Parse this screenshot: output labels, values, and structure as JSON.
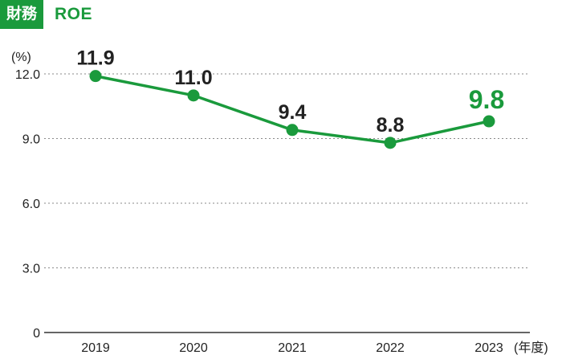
{
  "header": {
    "badge": "財務",
    "title": "ROE"
  },
  "chart_data": {
    "type": "line",
    "ylabel": "(%)",
    "xlabel": "(年度)",
    "categories": [
      "2019",
      "2020",
      "2021",
      "2022",
      "2023"
    ],
    "series": [
      {
        "values": [
          11.9,
          11.0,
          9.4,
          8.8,
          9.8
        ]
      }
    ],
    "data_labels": [
      "11.9",
      "11.0",
      "9.4",
      "8.8",
      "9.8"
    ],
    "ylim": [
      0,
      12
    ],
    "yticks": [
      {
        "value": 12,
        "label": "12.0"
      },
      {
        "value": 9,
        "label": "9.0"
      },
      {
        "value": 6,
        "label": "6.0"
      },
      {
        "value": 3,
        "label": "3.0"
      },
      {
        "value": 0,
        "label": "0"
      }
    ],
    "grid": true,
    "highlight_index": 4,
    "colors": {
      "accent": "#1a9a3c",
      "text": "#222222"
    }
  }
}
